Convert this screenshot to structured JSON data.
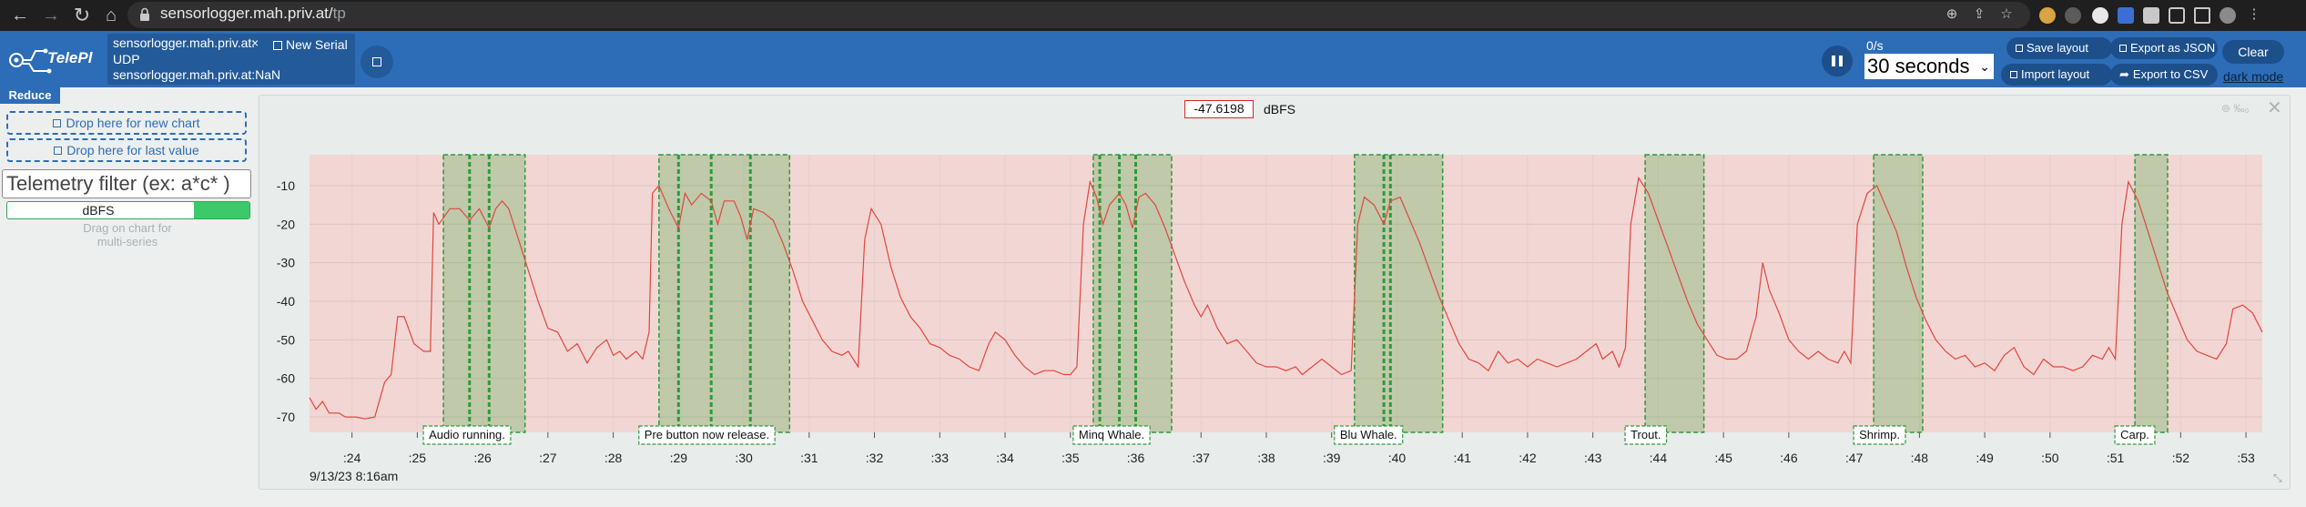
{
  "browser": {
    "url_host": "sensorlogger.mah.priv.at/",
    "url_path": "tp"
  },
  "header": {
    "connection_line1": "sensorlogger.mah.priv.at:",
    "connection_line2": "UDP",
    "connection_line3": "sensorlogger.mah.priv.at:NaN",
    "close_symbol": "×",
    "new_serial": "New Serial",
    "rate": "0/s",
    "time_window": "30 seconds",
    "save_layout": "Save layout",
    "export_json": "Export as JSON",
    "import_layout": "Import layout",
    "export_csv": "Export to CSV",
    "clear": "Clear",
    "dark_mode": "dark mode"
  },
  "sidebar": {
    "reduce": "Reduce",
    "drop_new_chart": "Drop here for new chart",
    "drop_last_value": "Drop here for last value",
    "filter_placeholder": "Telemetry filter (ex: a*c* )",
    "telemetry_item": "dBFS",
    "telemetry_fill": 0.23,
    "drag_hint_line1": "Drag on chart for",
    "drag_hint_line2": "multi-series"
  },
  "chart_panel": {
    "current_value": "-47.6198",
    "unit": "dBFS",
    "icons_text": "⊚ ‰₀"
  },
  "colors": {
    "brand_blue": "#2d6db7",
    "series_line": "#e0473f",
    "danger_zone": "#f2d6d3",
    "event_fill": "rgba(64,170,64,0.28)",
    "event_border": "#2e9a3a"
  },
  "chart_data": {
    "type": "line",
    "date_label": "9/13/23 8:16am",
    "x_tick_labels": [
      ":24",
      ":25",
      ":26",
      ":27",
      ":28",
      ":29",
      ":30",
      ":31",
      ":32",
      ":33",
      ":34",
      ":35",
      ":36",
      ":37",
      ":38",
      ":39",
      ":40",
      ":41",
      ":42",
      ":43",
      ":44",
      ":45",
      ":46",
      ":47",
      ":48",
      ":49",
      ":50",
      ":51",
      ":52",
      ":53"
    ],
    "x_tick_values": [
      24,
      25,
      26,
      27,
      28,
      29,
      30,
      31,
      32,
      33,
      34,
      35,
      36,
      37,
      38,
      39,
      40,
      41,
      42,
      43,
      44,
      45,
      46,
      47,
      48,
      49,
      50,
      51,
      52,
      53
    ],
    "xlim": [
      23.35,
      53.25
    ],
    "y_ticks": [
      -10,
      -20,
      -30,
      -40,
      -50,
      -60,
      -70
    ],
    "ylim": [
      -74,
      -2
    ],
    "shaded_band": [
      -74,
      -2
    ],
    "series": [
      {
        "values": [
          [
            23.35,
            -65
          ],
          [
            23.45,
            -68
          ],
          [
            23.55,
            -66
          ],
          [
            23.65,
            -69
          ],
          [
            23.8,
            -69
          ],
          [
            23.9,
            -70
          ],
          [
            24.05,
            -70
          ],
          [
            24.2,
            -70.5
          ],
          [
            24.35,
            -70
          ],
          [
            24.5,
            -61
          ],
          [
            24.6,
            -59
          ],
          [
            24.7,
            -44
          ],
          [
            24.8,
            -44
          ],
          [
            24.95,
            -51
          ],
          [
            25.1,
            -53
          ],
          [
            25.2,
            -53
          ],
          [
            25.25,
            -17
          ],
          [
            25.33,
            -20
          ],
          [
            25.5,
            -16
          ],
          [
            25.65,
            -16
          ],
          [
            25.8,
            -19
          ],
          [
            25.95,
            -16
          ],
          [
            26.1,
            -21
          ],
          [
            26.2,
            -16
          ],
          [
            26.3,
            -14
          ],
          [
            26.4,
            -16
          ],
          [
            26.55,
            -24
          ],
          [
            26.7,
            -32
          ],
          [
            26.85,
            -40
          ],
          [
            27.0,
            -47
          ],
          [
            27.15,
            -48
          ],
          [
            27.3,
            -53
          ],
          [
            27.45,
            -51
          ],
          [
            27.6,
            -56
          ],
          [
            27.75,
            -52
          ],
          [
            27.9,
            -50
          ],
          [
            28.0,
            -54
          ],
          [
            28.1,
            -53
          ],
          [
            28.2,
            -55
          ],
          [
            28.35,
            -53
          ],
          [
            28.45,
            -55
          ],
          [
            28.55,
            -48
          ],
          [
            28.6,
            -12
          ],
          [
            28.7,
            -10
          ],
          [
            28.85,
            -16
          ],
          [
            29.0,
            -21
          ],
          [
            29.1,
            -12
          ],
          [
            29.2,
            -15
          ],
          [
            29.35,
            -12
          ],
          [
            29.5,
            -14
          ],
          [
            29.6,
            -20
          ],
          [
            29.7,
            -14
          ],
          [
            29.85,
            -14
          ],
          [
            29.95,
            -18
          ],
          [
            30.05,
            -24
          ],
          [
            30.15,
            -16
          ],
          [
            30.3,
            -17
          ],
          [
            30.45,
            -19
          ],
          [
            30.6,
            -25
          ],
          [
            30.75,
            -32
          ],
          [
            30.9,
            -40
          ],
          [
            31.05,
            -45
          ],
          [
            31.2,
            -50
          ],
          [
            31.35,
            -53
          ],
          [
            31.5,
            -54
          ],
          [
            31.6,
            -53
          ],
          [
            31.75,
            -57
          ],
          [
            31.85,
            -24
          ],
          [
            31.95,
            -16
          ],
          [
            32.1,
            -20
          ],
          [
            32.25,
            -31
          ],
          [
            32.4,
            -39
          ],
          [
            32.55,
            -44
          ],
          [
            32.7,
            -47
          ],
          [
            32.85,
            -51
          ],
          [
            33.0,
            -52
          ],
          [
            33.15,
            -54
          ],
          [
            33.3,
            -55
          ],
          [
            33.45,
            -57
          ],
          [
            33.6,
            -58
          ],
          [
            33.75,
            -51
          ],
          [
            33.85,
            -48
          ],
          [
            34.0,
            -50
          ],
          [
            34.15,
            -54
          ],
          [
            34.3,
            -57
          ],
          [
            34.45,
            -59
          ],
          [
            34.6,
            -58
          ],
          [
            34.75,
            -58
          ],
          [
            34.9,
            -59
          ],
          [
            35.0,
            -59
          ],
          [
            35.1,
            -57
          ],
          [
            35.2,
            -20
          ],
          [
            35.3,
            -9
          ],
          [
            35.4,
            -13
          ],
          [
            35.5,
            -20
          ],
          [
            35.6,
            -15
          ],
          [
            35.75,
            -12
          ],
          [
            35.85,
            -15
          ],
          [
            35.95,
            -21
          ],
          [
            36.05,
            -13
          ],
          [
            36.15,
            -12
          ],
          [
            36.3,
            -15
          ],
          [
            36.45,
            -21
          ],
          [
            36.6,
            -28
          ],
          [
            36.75,
            -35
          ],
          [
            36.9,
            -41
          ],
          [
            37.0,
            -44
          ],
          [
            37.1,
            -41
          ],
          [
            37.25,
            -47
          ],
          [
            37.4,
            -51
          ],
          [
            37.55,
            -50
          ],
          [
            37.7,
            -53
          ],
          [
            37.85,
            -56
          ],
          [
            38.0,
            -57
          ],
          [
            38.15,
            -57
          ],
          [
            38.3,
            -58
          ],
          [
            38.45,
            -57
          ],
          [
            38.55,
            -59
          ],
          [
            38.7,
            -57
          ],
          [
            38.85,
            -55
          ],
          [
            39.0,
            -57
          ],
          [
            39.15,
            -59
          ],
          [
            39.3,
            -58
          ],
          [
            39.4,
            -20
          ],
          [
            39.5,
            -13
          ],
          [
            39.65,
            -15
          ],
          [
            39.8,
            -20
          ],
          [
            39.9,
            -14
          ],
          [
            40.05,
            -13
          ],
          [
            40.2,
            -19
          ],
          [
            40.35,
            -25
          ],
          [
            40.5,
            -32
          ],
          [
            40.65,
            -39
          ],
          [
            40.8,
            -45
          ],
          [
            40.95,
            -51
          ],
          [
            41.1,
            -55
          ],
          [
            41.25,
            -56
          ],
          [
            41.4,
            -58
          ],
          [
            41.55,
            -53
          ],
          [
            41.7,
            -56
          ],
          [
            41.85,
            -55
          ],
          [
            42.0,
            -57
          ],
          [
            42.15,
            -55
          ],
          [
            42.3,
            -56
          ],
          [
            42.45,
            -57
          ],
          [
            42.6,
            -56
          ],
          [
            42.75,
            -55
          ],
          [
            42.9,
            -53
          ],
          [
            43.05,
            -51
          ],
          [
            43.15,
            -55
          ],
          [
            43.3,
            -53
          ],
          [
            43.4,
            -57
          ],
          [
            43.5,
            -52
          ],
          [
            43.58,
            -20
          ],
          [
            43.7,
            -8
          ],
          [
            43.85,
            -12
          ],
          [
            44.0,
            -19
          ],
          [
            44.15,
            -26
          ],
          [
            44.3,
            -33
          ],
          [
            44.45,
            -40
          ],
          [
            44.6,
            -46
          ],
          [
            44.75,
            -50
          ],
          [
            44.9,
            -54
          ],
          [
            45.05,
            -55
          ],
          [
            45.2,
            -55
          ],
          [
            45.35,
            -53
          ],
          [
            45.5,
            -44
          ],
          [
            45.6,
            -30
          ],
          [
            45.7,
            -37
          ],
          [
            45.85,
            -43
          ],
          [
            46.0,
            -50
          ],
          [
            46.15,
            -53
          ],
          [
            46.3,
            -55
          ],
          [
            46.45,
            -53
          ],
          [
            46.6,
            -55
          ],
          [
            46.75,
            -56
          ],
          [
            46.85,
            -53
          ],
          [
            46.95,
            -56
          ],
          [
            47.05,
            -20
          ],
          [
            47.2,
            -12
          ],
          [
            47.35,
            -10
          ],
          [
            47.5,
            -16
          ],
          [
            47.65,
            -22
          ],
          [
            47.8,
            -31
          ],
          [
            47.95,
            -39
          ],
          [
            48.1,
            -45
          ],
          [
            48.25,
            -50
          ],
          [
            48.4,
            -53
          ],
          [
            48.55,
            -55
          ],
          [
            48.7,
            -54
          ],
          [
            48.85,
            -57
          ],
          [
            49.0,
            -56
          ],
          [
            49.15,
            -58
          ],
          [
            49.3,
            -54
          ],
          [
            49.45,
            -52
          ],
          [
            49.6,
            -57
          ],
          [
            49.75,
            -59
          ],
          [
            49.9,
            -55
          ],
          [
            50.05,
            -57
          ],
          [
            50.2,
            -57
          ],
          [
            50.35,
            -58
          ],
          [
            50.5,
            -57
          ],
          [
            50.65,
            -54
          ],
          [
            50.8,
            -55
          ],
          [
            50.9,
            -52
          ],
          [
            51.0,
            -55
          ],
          [
            51.1,
            -20
          ],
          [
            51.2,
            -9
          ],
          [
            51.35,
            -14
          ],
          [
            51.5,
            -22
          ],
          [
            51.65,
            -30
          ],
          [
            51.8,
            -38
          ],
          [
            51.95,
            -44
          ],
          [
            52.1,
            -50
          ],
          [
            52.25,
            -53
          ],
          [
            52.4,
            -54
          ],
          [
            52.55,
            -55
          ],
          [
            52.7,
            -51
          ],
          [
            52.8,
            -42
          ],
          [
            52.95,
            -41
          ],
          [
            53.1,
            -43
          ],
          [
            53.25,
            -48
          ]
        ]
      }
    ],
    "annotations": [
      {
        "label": "Audio running.",
        "x_start": 25.4,
        "x_end": 26.65,
        "dividers": [
          25.8,
          26.1
        ]
      },
      {
        "label": "Pre button now release.",
        "x_start": 28.7,
        "x_end": 30.7,
        "dividers": [
          29.0,
          29.5,
          30.1
        ]
      },
      {
        "label": "Minq Whale.",
        "x_start": 35.35,
        "x_end": 36.55,
        "dividers": [
          35.45,
          35.75,
          36.0
        ]
      },
      {
        "label": "Blu Whale.",
        "x_start": 39.35,
        "x_end": 40.7,
        "dividers": [
          39.8,
          39.9
        ]
      },
      {
        "label": "Trout.",
        "x_start": 43.8,
        "x_end": 44.7,
        "dividers": []
      },
      {
        "label": "Shrimp.",
        "x_start": 47.3,
        "x_end": 48.05,
        "dividers": []
      },
      {
        "label": "Carp.",
        "x_start": 51.3,
        "x_end": 51.8,
        "dividers": []
      }
    ]
  }
}
